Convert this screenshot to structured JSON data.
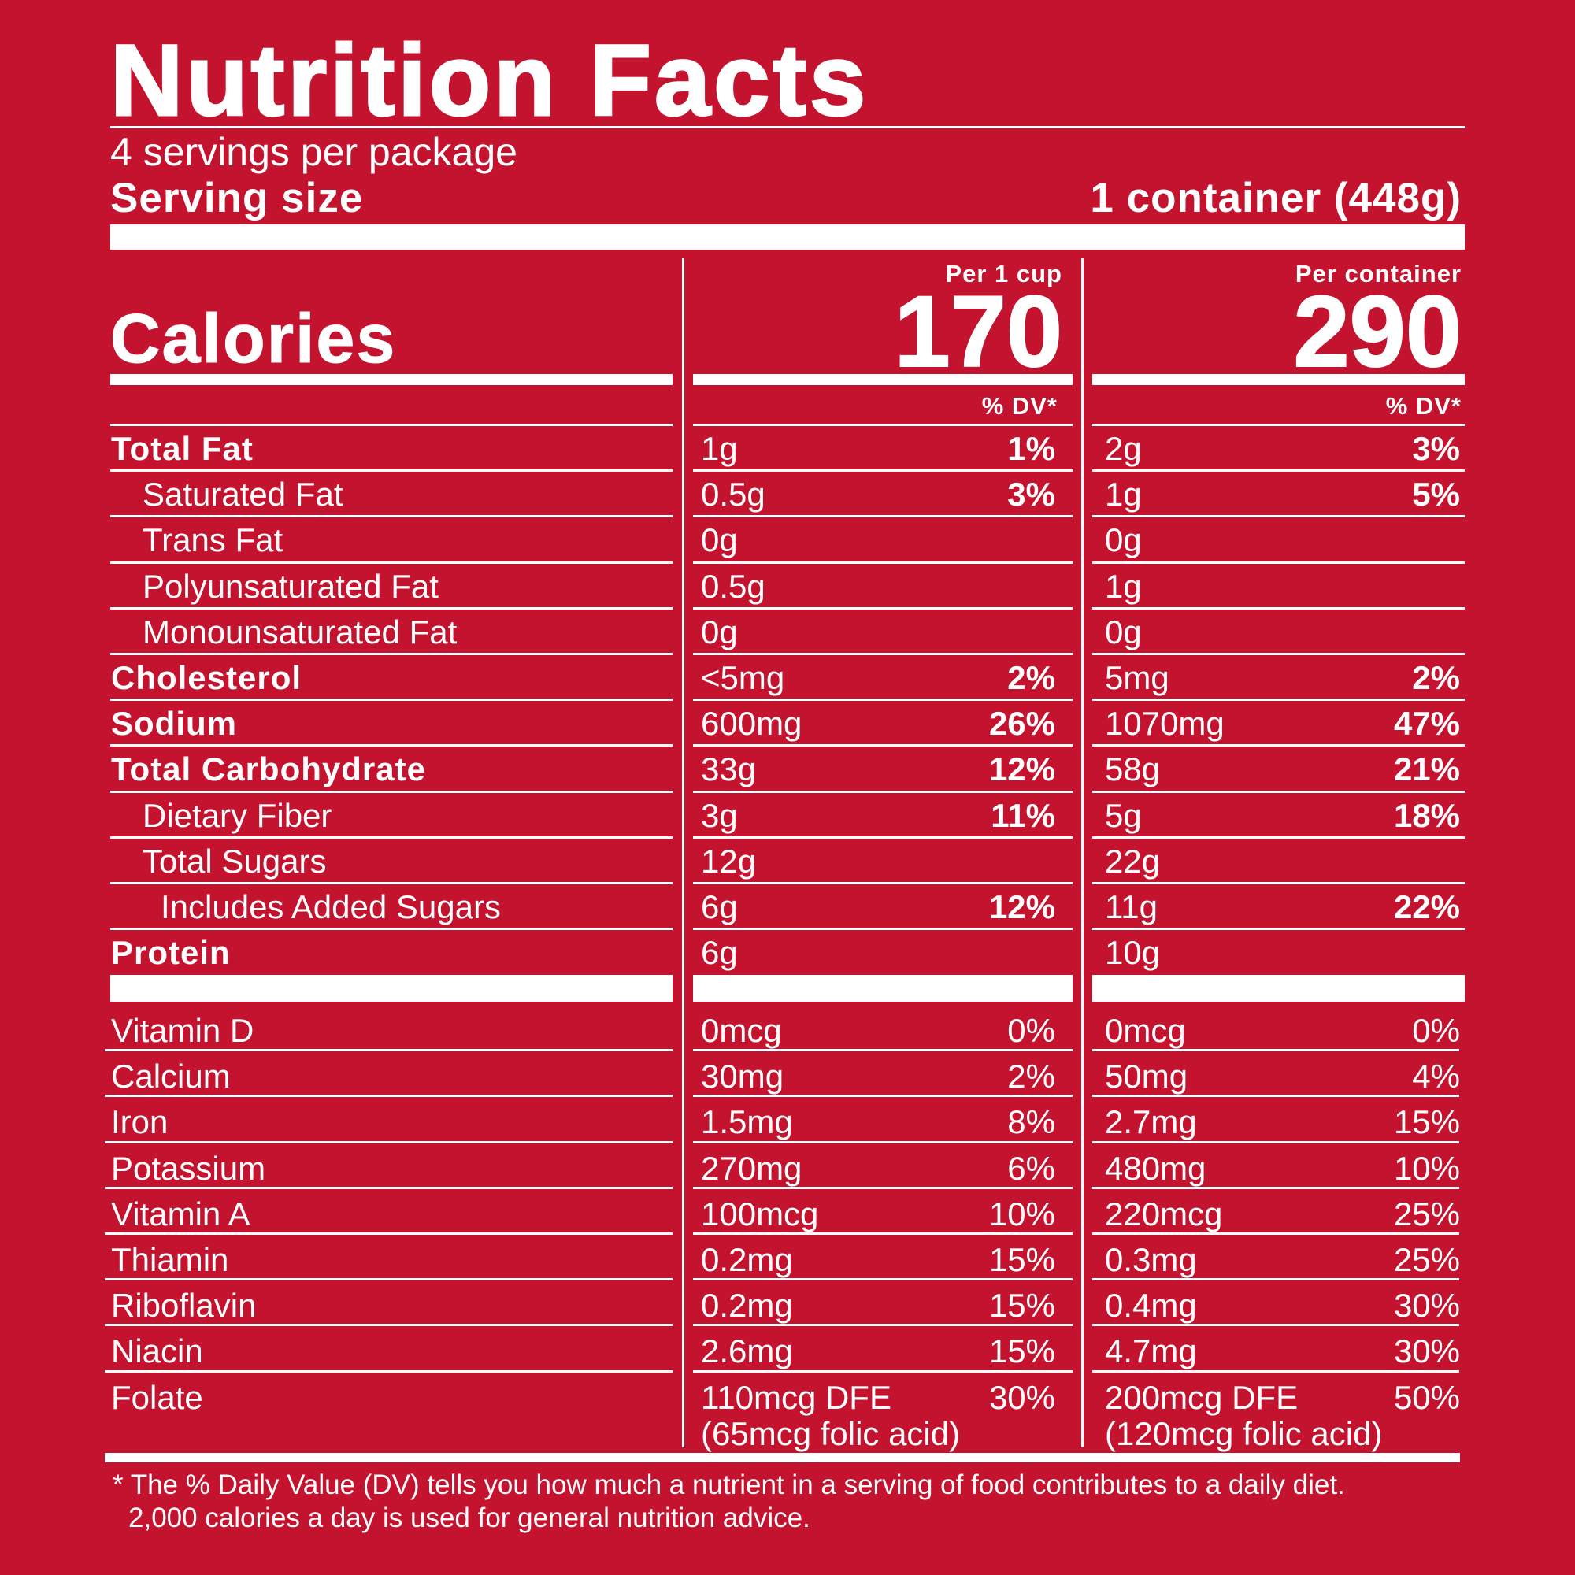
{
  "title": "Nutrition Facts",
  "servings_per_package": "4 servings per package",
  "serving_size_label": "Serving size",
  "serving_size_value": "1 container (448g)",
  "columns": [
    {
      "header": "Per 1 cup",
      "calories": "170",
      "dv_header": "% DV*"
    },
    {
      "header": "Per container",
      "calories": "290",
      "dv_header": "% DV*"
    }
  ],
  "calories_label": "Calories",
  "nutrients": [
    {
      "name": "Total Fat",
      "style": "bold",
      "col1": {
        "amount": "1g",
        "dv": "1%"
      },
      "col2": {
        "amount": "2g",
        "dv": "3%"
      }
    },
    {
      "name": "Saturated Fat",
      "style": "indent",
      "col1": {
        "amount": "0.5g",
        "dv": "3%"
      },
      "col2": {
        "amount": "1g",
        "dv": "5%"
      }
    },
    {
      "name": "Trans Fat",
      "style": "indent",
      "col1": {
        "amount": "0g",
        "dv": ""
      },
      "col2": {
        "amount": "0g",
        "dv": ""
      }
    },
    {
      "name": "Polyunsaturated Fat",
      "style": "indent",
      "col1": {
        "amount": "0.5g",
        "dv": ""
      },
      "col2": {
        "amount": "1g",
        "dv": ""
      }
    },
    {
      "name": "Monounsaturated Fat",
      "style": "indent",
      "col1": {
        "amount": "0g",
        "dv": ""
      },
      "col2": {
        "amount": "0g",
        "dv": ""
      }
    },
    {
      "name": "Cholesterol",
      "style": "bold",
      "col1": {
        "amount": "<5mg",
        "dv": "2%"
      },
      "col2": {
        "amount": "5mg",
        "dv": "2%"
      }
    },
    {
      "name": "Sodium",
      "style": "bold",
      "col1": {
        "amount": "600mg",
        "dv": "26%"
      },
      "col2": {
        "amount": "1070mg",
        "dv": "47%"
      }
    },
    {
      "name": "Total Carbohydrate",
      "style": "bold",
      "col1": {
        "amount": "33g",
        "dv": "12%"
      },
      "col2": {
        "amount": "58g",
        "dv": "21%"
      }
    },
    {
      "name": "Dietary Fiber",
      "style": "indent",
      "col1": {
        "amount": "3g",
        "dv": "11%"
      },
      "col2": {
        "amount": "5g",
        "dv": "18%"
      }
    },
    {
      "name": "Total Sugars",
      "style": "indent",
      "col1": {
        "amount": "12g",
        "dv": ""
      },
      "col2": {
        "amount": "22g",
        "dv": ""
      }
    },
    {
      "name": "Includes Added Sugars",
      "style": "indent2",
      "col1": {
        "amount": "6g",
        "dv": "12%"
      },
      "col2": {
        "amount": "11g",
        "dv": "22%"
      }
    },
    {
      "name": "Protein",
      "style": "bold",
      "col1": {
        "amount": "6g",
        "dv": ""
      },
      "col2": {
        "amount": "10g",
        "dv": ""
      }
    }
  ],
  "vitamins": [
    {
      "name": "Vitamin D",
      "col1": {
        "amount": "0mcg",
        "dv": "0%"
      },
      "col2": {
        "amount": "0mcg",
        "dv": "0%"
      }
    },
    {
      "name": "Calcium",
      "col1": {
        "amount": "30mg",
        "dv": "2%"
      },
      "col2": {
        "amount": "50mg",
        "dv": "4%"
      }
    },
    {
      "name": "Iron",
      "col1": {
        "amount": "1.5mg",
        "dv": "8%"
      },
      "col2": {
        "amount": "2.7mg",
        "dv": "15%"
      }
    },
    {
      "name": "Potassium",
      "col1": {
        "amount": "270mg",
        "dv": "6%"
      },
      "col2": {
        "amount": "480mg",
        "dv": "10%"
      }
    },
    {
      "name": "Vitamin A",
      "col1": {
        "amount": "100mcg",
        "dv": "10%"
      },
      "col2": {
        "amount": "220mcg",
        "dv": "25%"
      }
    },
    {
      "name": "Thiamin",
      "col1": {
        "amount": "0.2mg",
        "dv": "15%"
      },
      "col2": {
        "amount": "0.3mg",
        "dv": "25%"
      }
    },
    {
      "name": "Riboflavin",
      "col1": {
        "amount": "0.2mg",
        "dv": "15%"
      },
      "col2": {
        "amount": "0.4mg",
        "dv": "30%"
      }
    },
    {
      "name": "Niacin",
      "col1": {
        "amount": "2.6mg",
        "dv": "15%"
      },
      "col2": {
        "amount": "4.7mg",
        "dv": "30%"
      }
    },
    {
      "name": "Folate",
      "col1": {
        "amount": "110mcg DFE",
        "amount_line2": "(65mcg folic acid)",
        "dv": "30%"
      },
      "col2": {
        "amount": "200mcg DFE",
        "amount_line2": "(120mcg folic acid)",
        "dv": "50%"
      }
    }
  ],
  "footnote_line1": "* The % Daily Value (DV) tells you how much a nutrient in a serving of food contributes to a daily diet.",
  "footnote_line2": "2,000 calories a day is used for general nutrition advice.",
  "colors": {
    "background": "#c4132f",
    "foreground": "#ffffff"
  }
}
